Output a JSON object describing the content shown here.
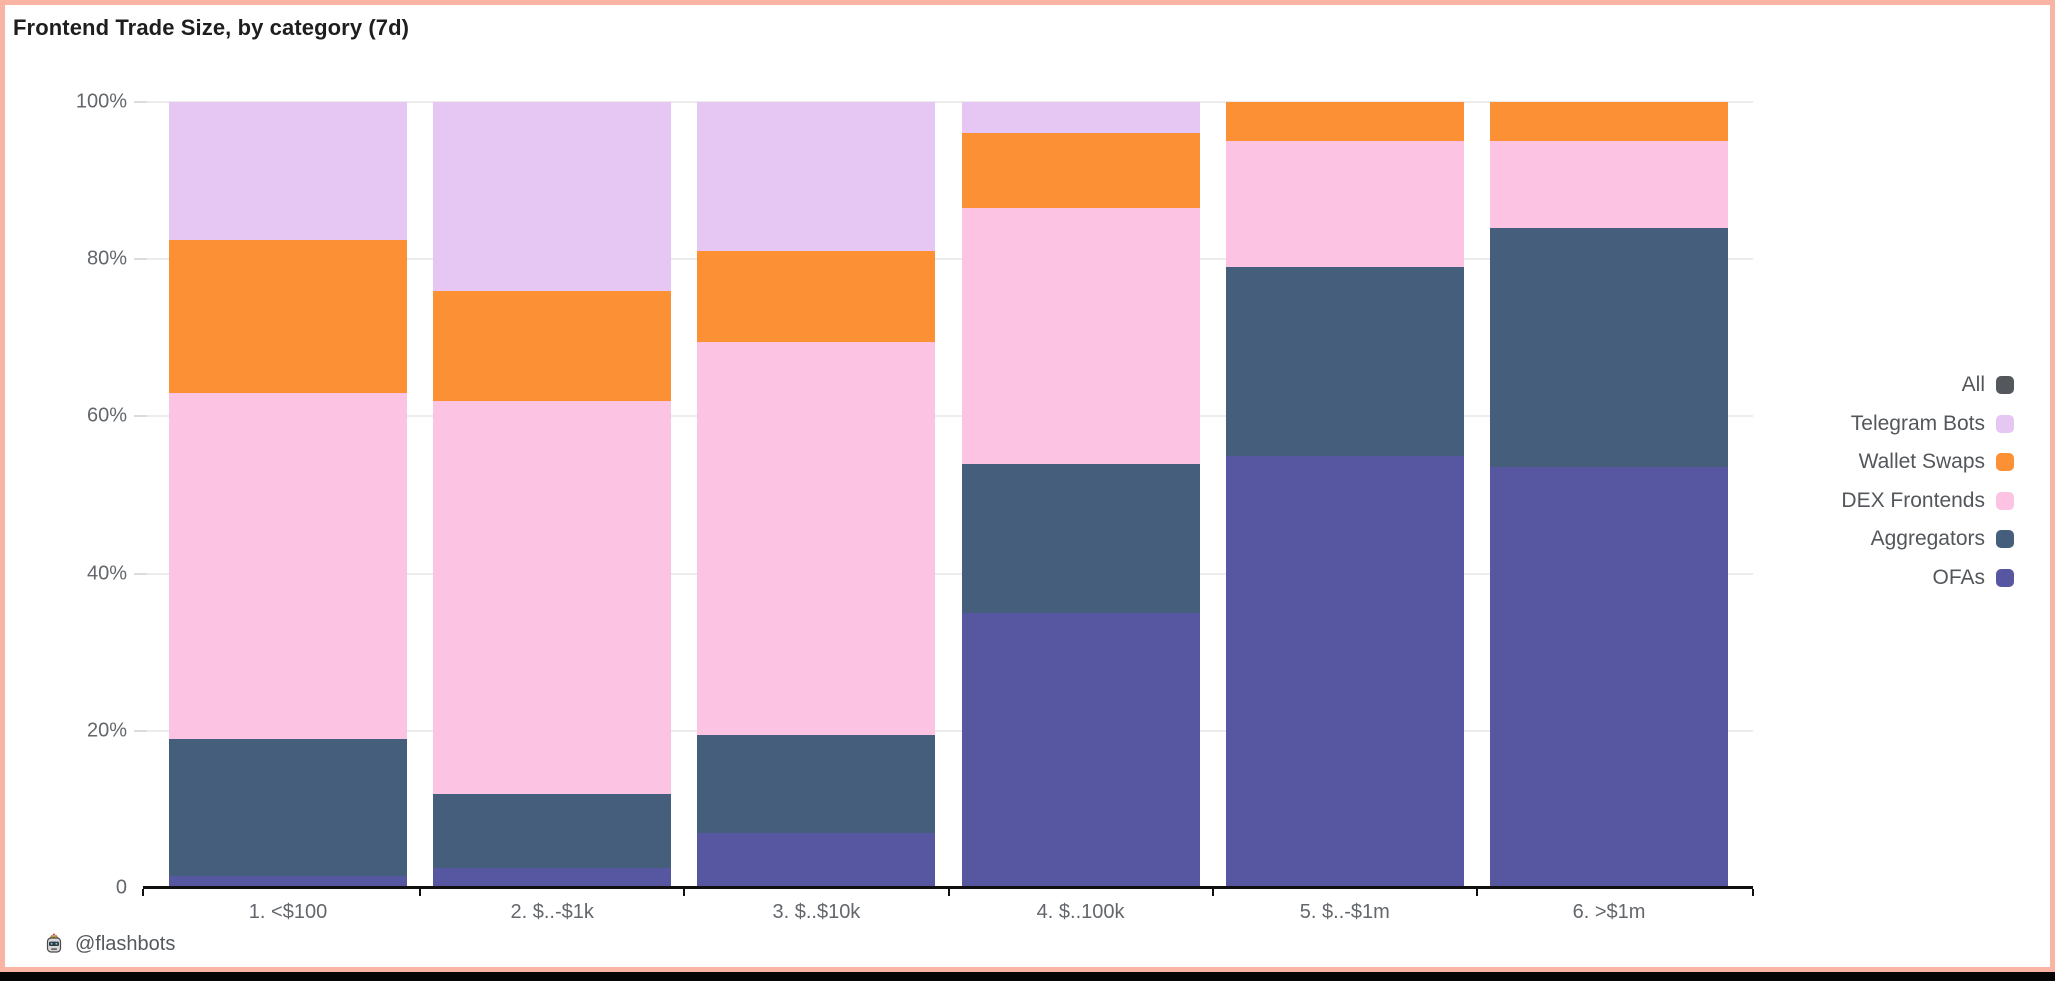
{
  "page": {
    "title": "Frontend Trade Size, by category (7d)",
    "footer_handle": "@flashbots",
    "border_color": "#F9B4A3"
  },
  "chart_data": {
    "type": "bar",
    "stacked": true,
    "percent": true,
    "title": "Frontend Trade Size, by category (7d)",
    "xlabel": "",
    "ylabel": "",
    "ylim": [
      0,
      100
    ],
    "grid": true,
    "legend_position": "right",
    "categories": [
      "1. <$100",
      "2. $..-$1k",
      "3. $..$10k",
      "4. $..100k",
      "5. $..-$1m",
      "6. >$1m"
    ],
    "y_axis": {
      "ticks": [
        {
          "value": 100,
          "label": "100%"
        },
        {
          "value": 80,
          "label": "80%"
        },
        {
          "value": 60,
          "label": "60%"
        },
        {
          "value": 40,
          "label": "40%"
        },
        {
          "value": 20,
          "label": "20%"
        },
        {
          "value": 0,
          "label": "0"
        }
      ]
    },
    "series": [
      {
        "key": "ofas",
        "name": "OFAs",
        "color": "#5756A1",
        "values": [
          1.5,
          2.5,
          7,
          35,
          55,
          53.5
        ]
      },
      {
        "key": "aggregators",
        "name": "Aggregators",
        "color": "#445E7C",
        "values": [
          17.5,
          9.5,
          12.5,
          19,
          24,
          30.5
        ]
      },
      {
        "key": "dex-frontends",
        "name": "DEX Frontends",
        "color": "#FCC3E2",
        "values": [
          44,
          50,
          50,
          32.5,
          16,
          11
        ]
      },
      {
        "key": "wallet-swaps",
        "name": "Wallet Swaps",
        "color": "#FB9134",
        "values": [
          19.5,
          14,
          11.5,
          9.5,
          5,
          5
        ]
      },
      {
        "key": "telegram-bots",
        "name": "Telegram Bots",
        "color": "#E6C6F2",
        "values": [
          17.5,
          24,
          19,
          4,
          0,
          0
        ]
      }
    ],
    "legend": [
      {
        "label": "All",
        "color": "#54585C"
      },
      {
        "label": "Telegram Bots",
        "color": "#E6C6F2"
      },
      {
        "label": "Wallet Swaps",
        "color": "#FB9134"
      },
      {
        "label": "DEX Frontends",
        "color": "#FCC3E2"
      },
      {
        "label": "Aggregators",
        "color": "#445E7C"
      },
      {
        "label": "OFAs",
        "color": "#5756A1"
      }
    ]
  }
}
